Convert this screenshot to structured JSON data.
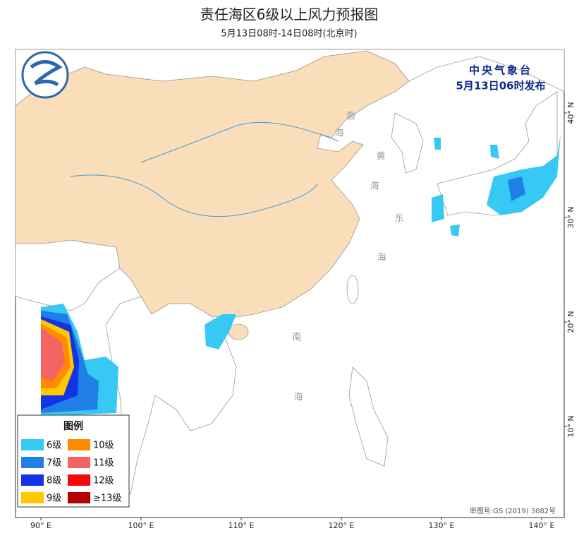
{
  "header": {
    "title": "责任海区6级以上风力预报图",
    "subtitle": "5月13日08时-14日08时(北京时)"
  },
  "issuer": {
    "name": "中央气象台",
    "time": "5月13日06时发布"
  },
  "sea_labels": [
    "渤",
    "海",
    "黄",
    "海",
    "东",
    "海",
    "南",
    "海"
  ],
  "legend": {
    "title": "图例",
    "items": [
      {
        "label": "6级",
        "color": "#38c8f4"
      },
      {
        "label": "10级",
        "color": "#ff8c00"
      },
      {
        "label": "7级",
        "color": "#1f7fe6"
      },
      {
        "label": "11级",
        "color": "#f56464"
      },
      {
        "label": "8级",
        "color": "#1432e6"
      },
      {
        "label": "12级",
        "color": "#f20a0a"
      },
      {
        "label": "9级",
        "color": "#ffc800"
      },
      {
        "label": "≥13级",
        "color": "#b40000"
      }
    ]
  },
  "axes": {
    "bottom": [
      "90° E",
      "100° E",
      "110° E",
      "120° E",
      "130° E",
      "140° E"
    ],
    "right": [
      "40° N",
      "30° N",
      "20° N",
      "10° N"
    ]
  },
  "map_number": "审图号:GS (2019) 3082号"
}
